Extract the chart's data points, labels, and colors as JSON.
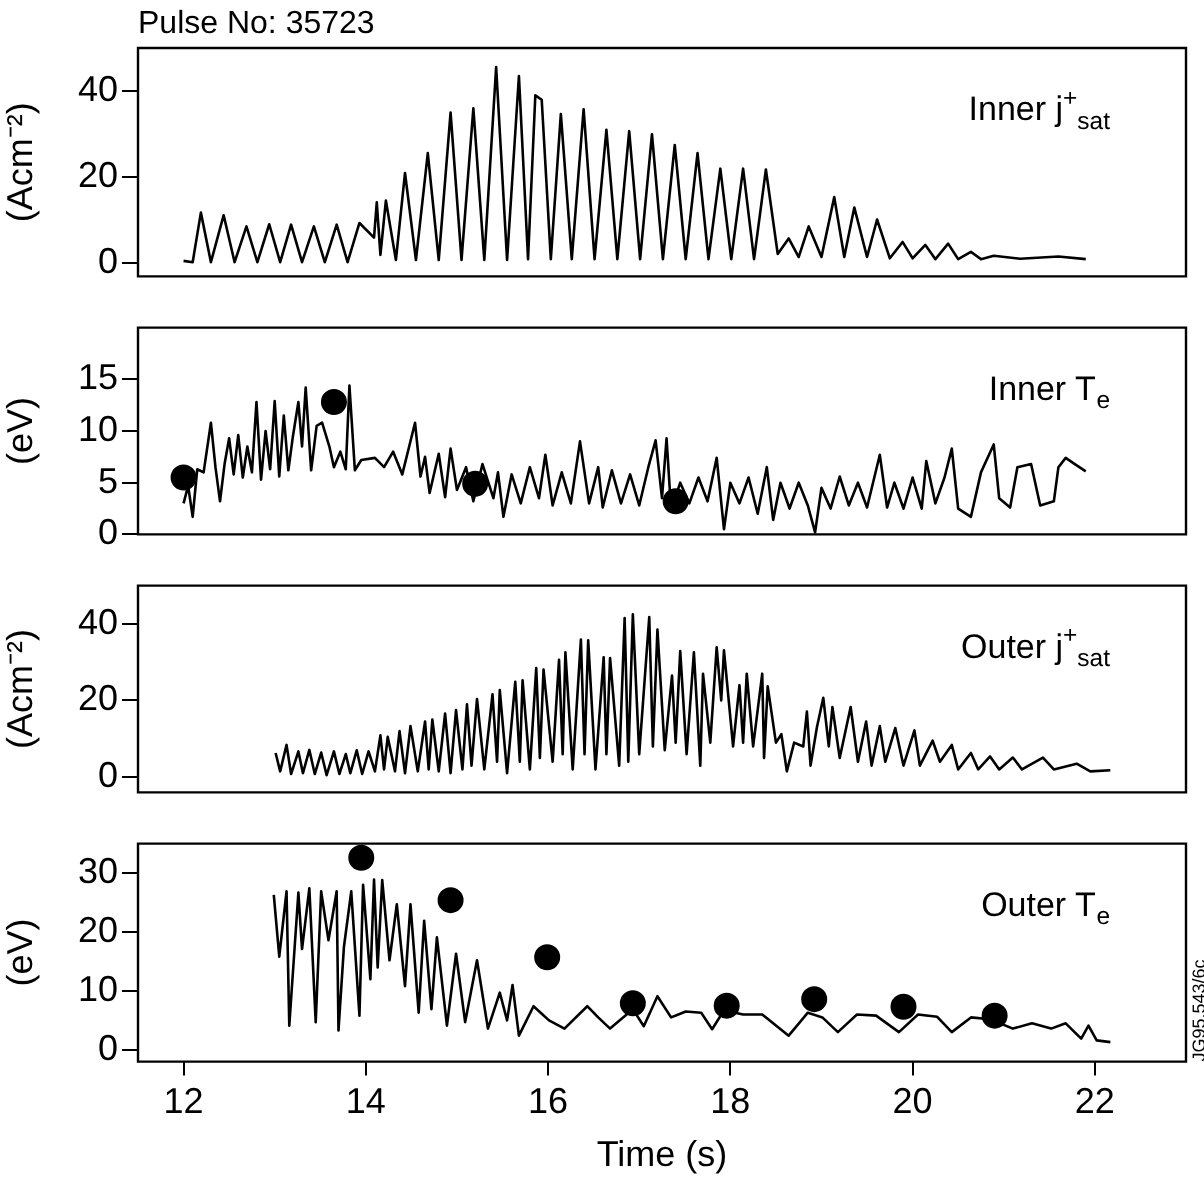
{
  "chart_data": [
    {
      "type": "line",
      "title": "Pulse No: 35723",
      "ylabel": "(Acm⁻²)",
      "annotations": [
        "Inner j$^{+}$$_{sat}$"
      ],
      "xlim": [
        11.5,
        23
      ],
      "xticks": [
        12,
        14,
        16,
        18,
        20,
        22
      ],
      "ylim": [
        -3,
        50
      ],
      "yticks": [
        0,
        20,
        40
      ],
      "tick_labels": "y",
      "series": [
        {
          "color": "#000000",
          "x": [
            12.0,
            12.1,
            12.19,
            12.3,
            12.44,
            12.56,
            12.69,
            12.81,
            12.94,
            13.06,
            13.18,
            13.3,
            13.43,
            13.55,
            13.68,
            13.8,
            13.93,
            14.09,
            14.12,
            14.16,
            14.22,
            14.33,
            14.43,
            14.55,
            14.68,
            14.8,
            14.93,
            15.05,
            15.18,
            15.3,
            15.43,
            15.55,
            15.68,
            15.78,
            15.86,
            15.93,
            16.03,
            16.14,
            16.26,
            16.39,
            16.51,
            16.64,
            16.76,
            16.89,
            17.01,
            17.14,
            17.26,
            17.39,
            17.51,
            17.64,
            17.76,
            17.89,
            18.01,
            18.14,
            18.26,
            18.39,
            18.52,
            18.64,
            18.75,
            18.86,
            19.0,
            19.14,
            19.25,
            19.36,
            19.5,
            19.61,
            19.75,
            19.89,
            20.0,
            20.14,
            20.25,
            20.39,
            20.5,
            20.64,
            20.75,
            20.89,
            21.18,
            21.6,
            21.9
          ],
          "values": [
            0.6,
            0.3,
            11.8,
            0.3,
            11.2,
            0.3,
            8.6,
            0.3,
            9.1,
            0.3,
            9.0,
            0.3,
            8.6,
            0.3,
            9.0,
            0.3,
            9.4,
            6.0,
            14.2,
            2,
            14.6,
            0.8,
            21,
            0.8,
            25.6,
            0.8,
            35,
            0.8,
            36,
            0.8,
            45.6,
            0.8,
            43.5,
            1,
            39,
            38,
            1,
            34.7,
            1,
            35.8,
            1,
            31,
            1,
            30.7,
            1,
            30,
            1,
            27.5,
            1,
            25.6,
            1,
            22,
            1,
            22,
            1,
            21.8,
            2.2,
            5.8,
            1.5,
            8.6,
            1.5,
            15.4,
            1.5,
            13,
            1.5,
            10.2,
            1.2,
            5,
            1.2,
            4.3,
            1,
            4.6,
            1,
            2.7,
            1,
            1.8,
            1.1,
            1.6,
            1.0
          ]
        }
      ]
    },
    {
      "type": "line",
      "ylabel": "(eV)",
      "annotations": [
        "Inner T$_{e}$"
      ],
      "xlim": [
        11.5,
        23
      ],
      "xticks": [
        12,
        14,
        16,
        18,
        20,
        22
      ],
      "ylim": [
        0,
        20
      ],
      "yticks": [
        0,
        5,
        10,
        15
      ],
      "tick_labels": "y",
      "series": [
        {
          "color": "#000000",
          "x": [
            12.0,
            12.05,
            12.1,
            12.15,
            12.22,
            12.3,
            12.35,
            12.4,
            12.45,
            12.5,
            12.55,
            12.6,
            12.65,
            12.7,
            12.75,
            12.8,
            12.85,
            12.9,
            12.95,
            13.0,
            13.05,
            13.1,
            13.15,
            13.2,
            13.26,
            13.3,
            13.34,
            13.4,
            13.46,
            13.52,
            13.6,
            13.65,
            13.72,
            13.78,
            13.82,
            13.88,
            13.95,
            14.1,
            14.2,
            14.3,
            14.4,
            14.54,
            14.6,
            14.65,
            14.7,
            14.8,
            14.87,
            14.93,
            15.0,
            15.1,
            15.18,
            15.28,
            15.4,
            15.45,
            15.51,
            15.6,
            15.7,
            15.8,
            15.9,
            15.97,
            16.05,
            16.15,
            16.25,
            16.35,
            16.45,
            16.55,
            16.6,
            16.7,
            16.8,
            16.9,
            17.0,
            17.1,
            17.18,
            17.25,
            17.3,
            17.35,
            17.45,
            17.55,
            17.65,
            17.75,
            17.85,
            17.93,
            18.0,
            18.1,
            18.2,
            18.3,
            18.4,
            18.47,
            18.55,
            18.65,
            18.75,
            18.85,
            18.93,
            19.0,
            19.1,
            19.2,
            19.3,
            19.4,
            19.5,
            19.64,
            19.72,
            19.8,
            19.9,
            20.0,
            20.1,
            20.15,
            20.25,
            20.35,
            20.43,
            20.5,
            20.64,
            20.75,
            20.89,
            20.95,
            21.07,
            21.15,
            21.3,
            21.4,
            21.55,
            21.6,
            21.68,
            21.78,
            21.9
          ],
          "values": [
            3.0,
            4.7,
            1.7,
            6.3,
            6.0,
            10.8,
            6.5,
            3.2,
            6.8,
            9.3,
            5.8,
            9.6,
            5.5,
            8.5,
            6.0,
            12.8,
            5.3,
            10,
            6.3,
            12.9,
            5.6,
            11.5,
            6.2,
            9.5,
            12.8,
            8.5,
            14.2,
            6.2,
            10.5,
            10.8,
            8.5,
            6.5,
            8.0,
            6.3,
            14.4,
            6.2,
            7.2,
            7.4,
            6.5,
            8.0,
            5.8,
            10.8,
            5.6,
            7.5,
            4.0,
            7.8,
            3.6,
            8.3,
            4.3,
            6.5,
            3.2,
            6.8,
            3.5,
            6.0,
            1.7,
            5.8,
            3.0,
            6.5,
            3.5,
            7.7,
            2.8,
            6.0,
            3.0,
            9.0,
            3.0,
            6.5,
            2.6,
            6.2,
            3.0,
            5.8,
            2.8,
            6.5,
            9.1,
            3.5,
            9.3,
            2.3,
            5.0,
            3.0,
            5.5,
            3.2,
            7.4,
            0.5,
            5.0,
            3.0,
            5.5,
            2.0,
            6.5,
            1.4,
            5.0,
            2.5,
            5.0,
            2.8,
            0.2,
            4.5,
            2.5,
            5.6,
            2.8,
            5.0,
            2.6,
            7.7,
            2.6,
            5.0,
            2.5,
            5.5,
            2.5,
            7.1,
            3.0,
            5.5,
            8.3,
            2.5,
            1.7,
            6.0,
            8.7,
            3.5,
            2.6,
            6.5,
            6.8,
            2.8,
            3.2,
            6.5,
            7.4,
            6.8,
            6.1
          ]
        },
        {
          "type": "scatter",
          "color": "#000000",
          "marker": "circle",
          "x": [
            12.0,
            13.65,
            15.2,
            17.4
          ],
          "values": [
            5.5,
            12.8,
            4.9,
            3.2
          ]
        }
      ]
    },
    {
      "type": "line",
      "ylabel": "(Acm⁻²)",
      "annotations": [
        "Outer j$^{+}$$_{sat}$"
      ],
      "xlim": [
        11.5,
        23
      ],
      "xticks": [
        12,
        14,
        16,
        18,
        20,
        22
      ],
      "ylim": [
        -4,
        50
      ],
      "yticks": [
        0,
        20,
        40
      ],
      "tick_labels": "y",
      "series": [
        {
          "color": "#000000",
          "x": [
            13.01,
            13.06,
            13.13,
            13.18,
            13.26,
            13.31,
            13.38,
            13.44,
            13.51,
            13.57,
            13.65,
            13.71,
            13.78,
            13.83,
            13.9,
            13.96,
            14.03,
            14.1,
            14.16,
            14.2,
            14.24,
            14.32,
            14.37,
            14.43,
            14.49,
            14.57,
            14.65,
            14.69,
            14.73,
            14.8,
            14.87,
            14.93,
            14.99,
            15.06,
            15.11,
            15.16,
            15.22,
            15.3,
            15.39,
            15.44,
            15.47,
            15.55,
            15.64,
            15.69,
            15.72,
            15.8,
            15.87,
            15.91,
            15.95,
            16.05,
            16.12,
            16.16,
            16.19,
            16.27,
            16.36,
            16.4,
            16.44,
            16.52,
            16.61,
            16.64,
            16.68,
            16.78,
            16.84,
            16.88,
            16.93,
            17.0,
            17.11,
            17.15,
            17.2,
            17.28,
            17.36,
            17.4,
            17.45,
            17.52,
            17.6,
            17.67,
            17.7,
            17.78,
            17.85,
            17.9,
            17.93,
            18.03,
            18.1,
            18.14,
            18.18,
            18.25,
            18.35,
            18.37,
            18.41,
            18.5,
            18.56,
            18.62,
            18.7,
            18.8,
            18.84,
            18.88,
            18.95,
            19.02,
            19.08,
            19.12,
            19.2,
            19.32,
            19.4,
            19.49,
            19.55,
            19.64,
            19.7,
            19.81,
            19.9,
            20.02,
            20.08,
            20.22,
            20.3,
            20.43,
            20.5,
            20.64,
            20.72,
            20.85,
            20.95,
            21.1,
            21.2,
            21.43,
            21.55,
            21.8,
            21.95,
            22.17
          ],
          "values": [
            6.3,
            1.5,
            8.4,
            0.8,
            6.7,
            1,
            7.1,
            0.8,
            6.4,
            0.5,
            6.7,
            0.8,
            6.0,
            1,
            7.0,
            0.8,
            6.7,
            1.5,
            10.9,
            2,
            10.5,
            1.5,
            12,
            1,
            13.3,
            1.5,
            14.5,
            2,
            15,
            1.5,
            16.6,
            1,
            17.5,
            2,
            19,
            3,
            20.4,
            2,
            21.6,
            4,
            22.7,
            1,
            24.9,
            4,
            25.3,
            2,
            28.5,
            5,
            28.1,
            4,
            30.6,
            6,
            32.6,
            2,
            35.9,
            6,
            35.7,
            2,
            31.3,
            6,
            31.1,
            3,
            41.5,
            4,
            42.5,
            6,
            41.8,
            8,
            38.5,
            7,
            26.5,
            9,
            32.9,
            6,
            32.6,
            3,
            27,
            9,
            33.9,
            20,
            33.1,
            8,
            24,
            9,
            27,
            8,
            27,
            5,
            23.7,
            9,
            11.2,
            1.5,
            9,
            8,
            17.1,
            3,
            13,
            20.7,
            8,
            18.3,
            5,
            18.3,
            4,
            14.5,
            3,
            13.3,
            4,
            12.8,
            3,
            12.2,
            3,
            9.5,
            4,
            8.4,
            2,
            6.3,
            2,
            5.4,
            2,
            5.1,
            2,
            5.1,
            2,
            3.5,
            1.5,
            1.8
          ]
        }
      ]
    },
    {
      "type": "line",
      "xlabel": "Time (s)",
      "ylabel": "(eV)",
      "annotations": [
        "Outer T$_{e}$",
        "JG95.543/6c"
      ],
      "xlim": [
        11.5,
        23
      ],
      "xticks": [
        12,
        14,
        16,
        18,
        20,
        22
      ],
      "ylim": [
        -2,
        35
      ],
      "yticks": [
        0,
        10,
        20,
        30
      ],
      "series": [
        {
          "color": "#000000",
          "x": [
            12.99,
            13.05,
            13.13,
            13.16,
            13.26,
            13.3,
            13.38,
            13.45,
            13.51,
            13.59,
            13.68,
            13.7,
            13.76,
            13.84,
            13.93,
            13.97,
            14.05,
            14.09,
            14.13,
            14.18,
            14.26,
            14.34,
            14.43,
            14.49,
            14.58,
            14.64,
            14.72,
            14.78,
            14.89,
            14.99,
            15.09,
            15.22,
            15.34,
            15.47,
            15.55,
            15.61,
            15.68,
            15.84,
            16.01,
            16.18,
            16.43,
            16.55,
            16.68,
            16.93,
            17.05,
            17.2,
            17.35,
            17.51,
            17.68,
            17.8,
            17.93,
            18.14,
            18.35,
            18.64,
            18.85,
            19.01,
            19.18,
            19.39,
            19.6,
            19.85,
            20.06,
            20.27,
            20.43,
            20.64,
            20.85,
            21.1,
            21.31,
            21.52,
            21.68,
            21.85,
            21.93,
            22.02,
            22.17
          ],
          "values": [
            26.3,
            15.8,
            26.9,
            4.1,
            26.7,
            17.1,
            27.4,
            4.7,
            26.9,
            18.6,
            26.9,
            3.3,
            17.5,
            26.9,
            5.8,
            28,
            12,
            28.9,
            14,
            28.8,
            15.2,
            24.7,
            10.8,
            24.7,
            6.3,
            21.9,
            6.9,
            19.1,
            4.1,
            16.3,
            4.7,
            15.2,
            3.6,
            9.7,
            5,
            11,
            2.4,
            7.4,
            5,
            3.6,
            7.4,
            5.5,
            3.6,
            6.9,
            4,
            9.1,
            5.5,
            6.5,
            6.3,
            3.5,
            6.7,
            6,
            6,
            2.4,
            6.3,
            5.5,
            3,
            6,
            5.8,
            3,
            6,
            5.6,
            3,
            5.5,
            5.2,
            3.6,
            4.5,
            3.6,
            4.5,
            1.9,
            4.1,
            1.6,
            1.3
          ]
        },
        {
          "type": "scatter",
          "color": "#000000",
          "marker": "circle",
          "x": [
            13.95,
            14.93,
            15.99,
            16.93,
            17.96,
            18.92,
            19.9,
            20.9
          ],
          "values": [
            32.6,
            25.4,
            15.7,
            7.9,
            7.5,
            8.6,
            7.3,
            5.8
          ]
        }
      ]
    }
  ]
}
